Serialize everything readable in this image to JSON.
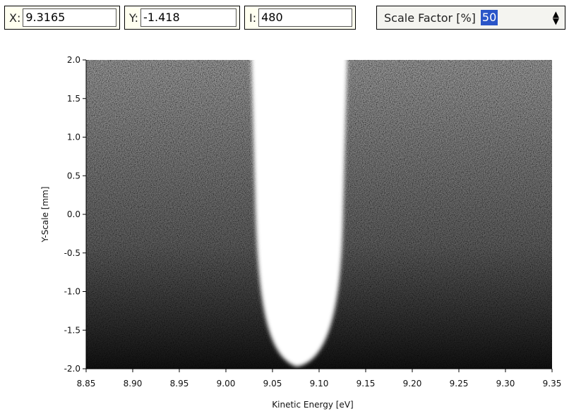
{
  "toolbar": {
    "x_label": "X:",
    "x_value": "9.3165",
    "y_label": "Y:",
    "y_value": "-1.418",
    "i_label": "I:",
    "i_value": "480",
    "scale_label": "Scale Factor [%]",
    "scale_value": "50"
  },
  "chart_data": {
    "type": "image",
    "xlabel": "Kinetic Energy [eV]",
    "ylabel": "Y-Scale [mm]",
    "xlim": [
      8.85,
      9.35
    ],
    "xticks": [
      8.85,
      {
        "value": 8.9,
        "label": "8.90"
      },
      8.95,
      {
        "value": 9,
        "label": "9.00"
      },
      9.05,
      {
        "value": 9.1,
        "label": "9.10"
      },
      9.15,
      {
        "value": 9.2,
        "label": "9.20"
      },
      9.25,
      {
        "value": 9.3,
        "label": "9.30"
      },
      9.35
    ],
    "ylim": [
      -2,
      2
    ],
    "yticks": [
      {
        "value": 2,
        "label": "2.0"
      },
      1.5,
      {
        "value": 1,
        "label": "1.0"
      },
      0.5,
      {
        "value": 0,
        "label": "0.0"
      },
      -0.5,
      {
        "value": -1,
        "label": "-1.0"
      },
      -1.5,
      {
        "value": -2,
        "label": "-2.0"
      }
    ]
  }
}
